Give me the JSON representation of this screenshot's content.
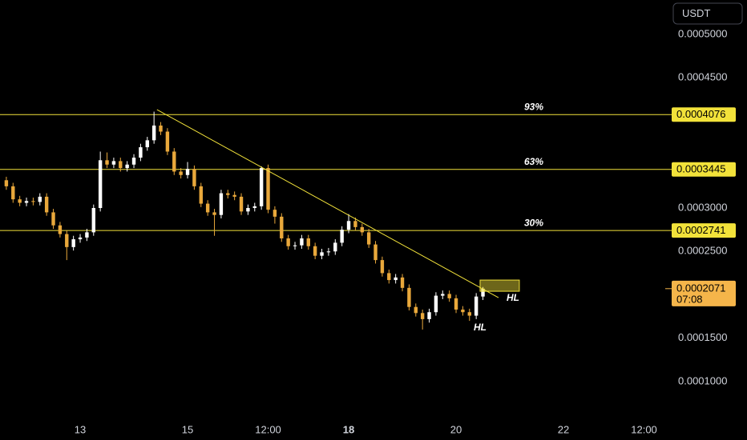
{
  "chart_data": {
    "type": "candlestick",
    "currency": "USDT",
    "up_color": "#ffffff",
    "down_color": "#e9a83b",
    "level_color": "#f2e23a",
    "xlim": [
      11.507,
      23.895
    ],
    "xticks": [
      13,
      15,
      {
        "value": 16.5,
        "label": "12:00"
      },
      18,
      20,
      22,
      {
        "value": 23.5,
        "label": "12:00"
      }
    ],
    "ylim": [
      5.58e-05,
      0.0005396
    ],
    "yticks": [
      {
        "value": 0.0005,
        "label": "0.0005000"
      },
      {
        "value": 0.00045,
        "label": "0.0004500"
      },
      {
        "value": 0.0003,
        "label": "0.0003000"
      },
      {
        "value": 0.00025,
        "label": "0.0002500"
      },
      {
        "value": 0.00015,
        "label": "0.0001500"
      },
      {
        "value": 0.0001,
        "label": "0.0001000"
      }
    ],
    "x": [
      11.625,
      11.75,
      11.875,
      12,
      12.125,
      12.25,
      12.375,
      12.5,
      12.625,
      12.75,
      12.875,
      13,
      13.125,
      13.25,
      13.375,
      13.5,
      13.625,
      13.75,
      13.875,
      14,
      14.125,
      14.25,
      14.375,
      14.5,
      14.625,
      14.75,
      14.875,
      15,
      15.125,
      15.25,
      15.375,
      15.5,
      15.625,
      15.75,
      15.875,
      16,
      16.125,
      16.25,
      16.375,
      16.5,
      16.625,
      16.75,
      16.875,
      17,
      17.125,
      17.25,
      17.375,
      17.5,
      17.625,
      17.75,
      17.875,
      18,
      18.125,
      18.25,
      18.375,
      18.5,
      18.625,
      18.75,
      18.875,
      19,
      19.125,
      19.25,
      19.375,
      19.5,
      19.625,
      19.75,
      19.875,
      20,
      20.125,
      20.25,
      20.375,
      20.5
    ],
    "open": [
      0.000332,
      0.000325,
      0.00031,
      0.000306,
      0.000308,
      0.000307,
      0.000313,
      0.000295,
      0.00028,
      0.00027,
      0.000255,
      0.000264,
      0.000266,
      0.000272,
      0.0003,
      0.000355,
      0.00035,
      0.000354,
      0.000346,
      0.00035,
      0.000358,
      0.00037,
      0.000378,
      0.000395,
      0.000388,
      0.000365,
      0.000342,
      0.000338,
      0.000345,
      0.000325,
      0.000305,
      0.000295,
      0.000292,
      0.000317,
      0.000315,
      0.000313,
      0.000296,
      0.0003,
      0.000302,
      0.000346,
      0.000298,
      0.00029,
      0.000265,
      0.000256,
      0.000257,
      0.000265,
      0.000256,
      0.000245,
      0.000249,
      0.00025,
      0.00026,
      0.000275,
      0.000285,
      0.000278,
      0.000272,
      0.000258,
      0.00024,
      0.000225,
      0.000217,
      0.00022,
      0.000208,
      0.000186,
      0.000179,
      0.000172,
      0.00018,
      0.000199,
      0.000201,
      0.000196,
      0.000183,
      0.00018,
      0.000176,
      0.000198
    ],
    "high": [
      0.000336,
      0.000329,
      0.000314,
      0.000312,
      0.000312,
      0.000317,
      0.000317,
      0.000299,
      0.000284,
      0.000274,
      0.000268,
      0.00027,
      0.000276,
      0.000304,
      0.000365,
      0.000364,
      0.000358,
      0.000358,
      0.000354,
      0.000362,
      0.000374,
      0.000382,
      0.000411,
      0.000399,
      0.000392,
      0.000369,
      0.000346,
      0.000353,
      0.000349,
      0.000329,
      0.000309,
      0.000299,
      0.000321,
      0.000321,
      0.000319,
      0.000317,
      0.000304,
      0.000306,
      0.000348,
      0.00035,
      0.000302,
      0.000294,
      0.000269,
      0.000261,
      0.000269,
      0.000269,
      0.00026,
      0.000253,
      0.000254,
      0.000264,
      0.000279,
      0.000293,
      0.000289,
      0.000282,
      0.000276,
      0.000262,
      0.000244,
      0.000229,
      0.000224,
      0.000224,
      0.000212,
      0.00019,
      0.000183,
      0.000184,
      0.000203,
      0.000205,
      0.000205,
      0.0002,
      0.000187,
      0.000184,
      0.000202,
      0.000209
    ],
    "low": [
      0.000321,
      0.000306,
      0.000302,
      0.000302,
      0.000303,
      0.000303,
      0.000291,
      0.000276,
      0.000266,
      0.00024,
      0.000251,
      0.00026,
      0.000262,
      0.000268,
      0.000296,
      0.000346,
      0.000346,
      0.000342,
      0.000342,
      0.000346,
      0.000354,
      0.000366,
      0.000374,
      0.000384,
      0.000361,
      0.000338,
      0.000334,
      0.000334,
      0.000321,
      0.000301,
      0.000291,
      0.000268,
      0.000288,
      0.000311,
      0.000309,
      0.000292,
      0.000292,
      0.000296,
      0.000298,
      0.000294,
      0.000282,
      0.000261,
      0.000252,
      0.000252,
      0.000253,
      0.000252,
      0.000241,
      0.000241,
      0.000245,
      0.000246,
      0.000256,
      0.000271,
      0.000274,
      0.000268,
      0.000254,
      0.000236,
      0.000221,
      0.000213,
      0.000213,
      0.000204,
      0.000182,
      0.000175,
      0.00016,
      0.000168,
      0.000176,
      0.000195,
      0.000192,
      0.000179,
      0.000176,
      0.00017,
      0.000172,
      0.000194
    ],
    "close": [
      0.000325,
      0.00031,
      0.000306,
      0.000308,
      0.000307,
      0.000313,
      0.000295,
      0.00028,
      0.00027,
      0.000255,
      0.000264,
      0.000266,
      0.000272,
      0.0003,
      0.000355,
      0.00035,
      0.000354,
      0.000346,
      0.00035,
      0.000358,
      0.00037,
      0.000378,
      0.000395,
      0.000388,
      0.000365,
      0.000342,
      0.000338,
      0.000345,
      0.000325,
      0.000305,
      0.000295,
      0.000292,
      0.000317,
      0.000315,
      0.000313,
      0.000296,
      0.0003,
      0.000302,
      0.000346,
      0.000298,
      0.00029,
      0.000265,
      0.000256,
      0.000257,
      0.000265,
      0.000256,
      0.000245,
      0.000249,
      0.00025,
      0.00026,
      0.000275,
      0.000285,
      0.000278,
      0.000272,
      0.000258,
      0.00024,
      0.000225,
      0.000217,
      0.00022,
      0.000208,
      0.000186,
      0.000179,
      0.000172,
      0.00018,
      0.000199,
      0.000201,
      0.000196,
      0.000183,
      0.00018,
      0.000176,
      0.000198,
      0.0002071
    ],
    "levels": [
      {
        "value": 0.0004076,
        "label": "93%",
        "price_label": "0.0004076"
      },
      {
        "value": 0.0003445,
        "label": "63%",
        "price_label": "0.0003445"
      },
      {
        "value": 0.0002741,
        "label": "30%",
        "price_label": "0.0002741"
      }
    ],
    "trendline": {
      "x": [
        14.43,
        20.79
      ],
      "y": [
        0.0004133,
        0.0001967
      ]
    },
    "zone": {
      "x": [
        20.447,
        21.178
      ],
      "y": [
        0.000217,
        0.0002041
      ]
    },
    "last_price": {
      "value": 0.0002071,
      "label": "0.0002071",
      "countdown": "07:08",
      "color": "#f5b54a"
    },
    "annotations": [
      {
        "text": "HL"
      },
      {
        "text": "HL"
      }
    ]
  }
}
